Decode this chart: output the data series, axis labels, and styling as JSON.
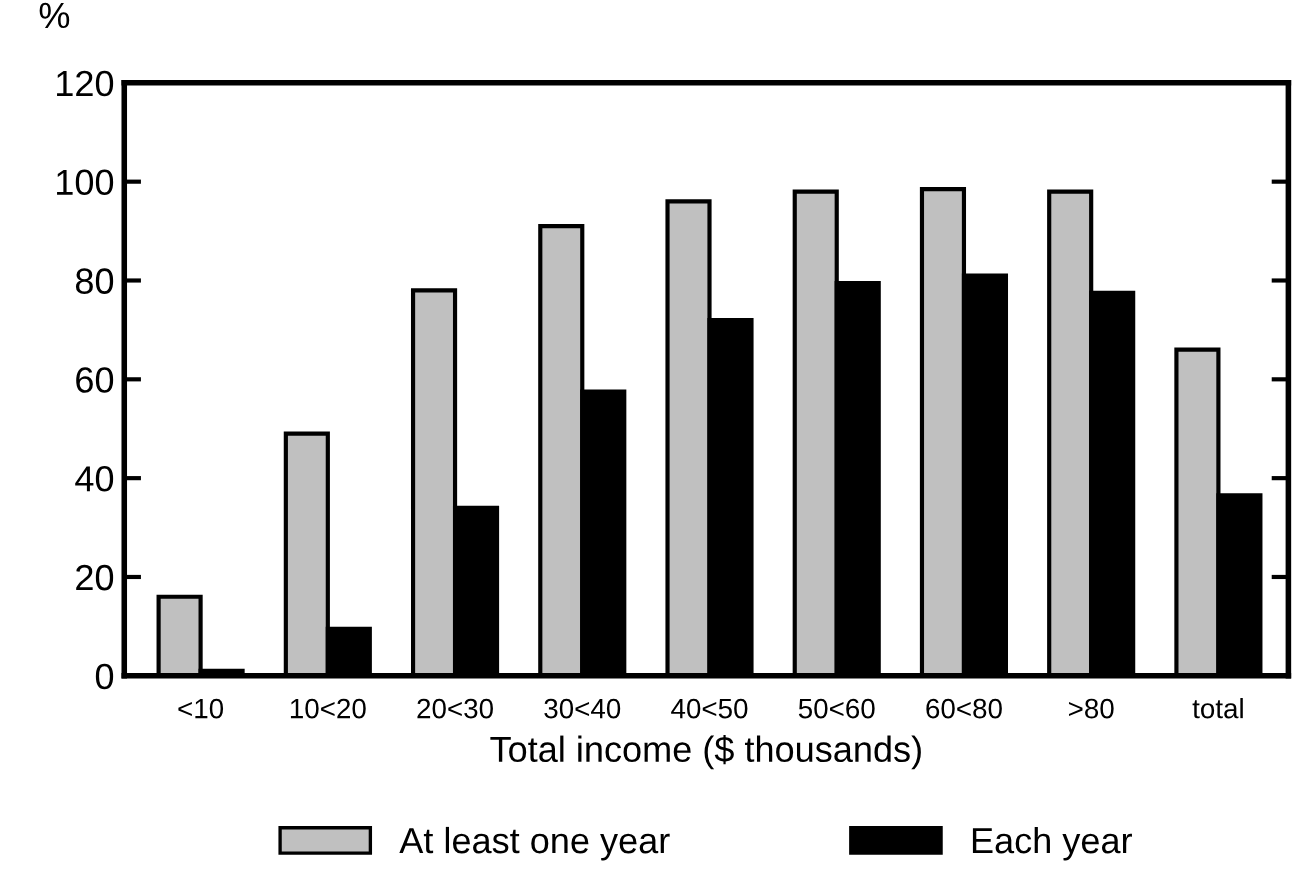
{
  "chart_data": {
    "type": "bar",
    "ylabel": "%",
    "xlabel": "Total income ($ thousands)",
    "categories": [
      "<10",
      "10<20",
      "20<30",
      "30<40",
      "40<50",
      "50<60",
      "60<80",
      ">80",
      "total"
    ],
    "series": [
      {
        "name": "At least one year",
        "color": "#c0c0c0",
        "values": [
          16,
          49,
          78,
          91,
          96,
          98,
          98.5,
          98,
          66
        ]
      },
      {
        "name": "Each year",
        "color": "#000000",
        "values": [
          1,
          9.5,
          34,
          57.5,
          72,
          79.5,
          81,
          77.5,
          36.5
        ]
      }
    ],
    "ylim": [
      0,
      120
    ],
    "yticks": [
      0,
      20,
      40,
      60,
      80,
      100,
      120
    ],
    "grid": false,
    "legend": "bottom"
  }
}
